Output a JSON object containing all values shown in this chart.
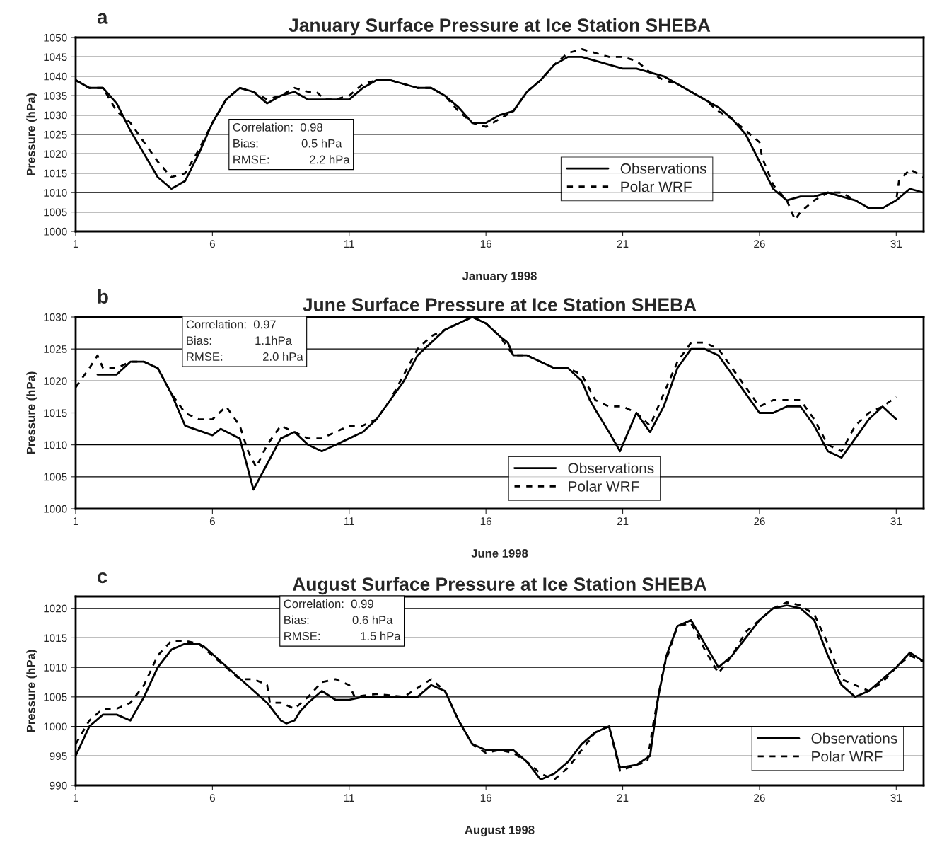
{
  "chart_data": [
    {
      "type": "line",
      "title": "January Surface Pressure at Ice Station SHEBA",
      "xlabel": "January 1998",
      "ylabel": "Pressure (hPa)",
      "annotations": [
        "a",
        "Correlation:  0.98",
        "Bias:             0.5 hPa",
        "RMSE:            2.2 hPa"
      ],
      "xlim": [
        1,
        32
      ],
      "xticks": [
        1,
        6,
        11,
        16,
        21,
        26,
        31
      ],
      "ylim": [
        1000,
        1050
      ],
      "yticks": [
        1000,
        1005,
        1010,
        1015,
        1020,
        1025,
        1030,
        1035,
        1040,
        1045,
        1050
      ],
      "grid": "y",
      "legend": "bottom right",
      "marker": "none",
      "series": [
        {
          "name": "Observations",
          "color": "#000000",
          "line_style": "solid",
          "x": [
            1,
            1.5,
            2,
            2.5,
            3,
            3.5,
            4,
            4.5,
            5,
            5.5,
            6,
            6.5,
            7,
            7.5,
            8,
            8.5,
            9,
            9.5,
            10,
            10.5,
            11,
            11.5,
            12,
            12.5,
            13,
            13.5,
            14,
            14.5,
            15,
            15.5,
            16,
            16.5,
            17,
            17.5,
            18,
            18.5,
            19,
            19.5,
            20,
            20.5,
            21,
            21.5,
            22,
            22.5,
            23,
            23.5,
            24,
            24.5,
            25,
            25.5,
            26,
            26.5,
            27,
            27.5,
            28,
            28.5,
            29,
            29.5,
            30,
            30.5,
            31,
            31.5,
            32
          ],
          "values": [
            1039,
            1037,
            1037,
            1033,
            1026,
            1020,
            1014,
            1011,
            1013,
            1020,
            1028,
            1034,
            1037,
            1036,
            1033,
            1035,
            1036,
            1034,
            1034,
            1034,
            1034,
            1037,
            1039,
            1039,
            1038,
            1037,
            1037,
            1035,
            1032,
            1028,
            1028,
            1030,
            1031,
            1036,
            1039,
            1043,
            1045,
            1045,
            1044,
            1043,
            1042,
            1042,
            1041,
            1040,
            1038,
            1036,
            1034,
            1032,
            1029,
            1025,
            1018,
            1011,
            1008,
            1009,
            1009,
            1010,
            1009,
            1008,
            1006,
            1006,
            1008,
            1011,
            1010
          ]
        },
        {
          "name": "Polar WRF",
          "color": "#000000",
          "line_style": "dashed",
          "x": [
            1,
            1.5,
            2,
            2.5,
            3,
            3.5,
            4,
            4.5,
            5,
            5.5,
            6,
            6.5,
            7,
            7.5,
            8,
            8.5,
            9,
            9.5,
            9.8,
            9.9,
            10.1,
            10.5,
            11,
            11.5,
            12,
            12.5,
            13,
            13.5,
            14,
            14.5,
            15,
            15.5,
            16,
            16.5,
            17,
            17.1,
            17.3,
            17.5,
            18,
            18.5,
            19,
            19.5,
            20,
            20.5,
            21,
            21.5,
            22,
            22.5,
            23,
            23.5,
            24,
            24.5,
            25,
            25.5,
            26,
            26.05,
            26.1,
            26.5,
            27,
            27.3,
            27.5,
            28,
            28.5,
            29,
            29.5,
            30,
            30.5,
            31,
            31.05,
            31.1,
            31.5,
            32
          ],
          "values": [
            1039,
            1037,
            1037,
            1031,
            1028,
            1023,
            1018,
            1014,
            1015,
            1021,
            1028,
            1034,
            1037,
            1036,
            1034,
            1035,
            1037,
            1036,
            1036,
            null,
            1034,
            1034,
            1035,
            1038,
            1039,
            1039,
            1038,
            1037,
            1037,
            1035,
            1031,
            1028,
            1027,
            1029,
            1031,
            null,
            1034,
            1036,
            1039,
            1043,
            1046,
            1047,
            1046,
            1045,
            1045,
            1044,
            1041,
            1039,
            1038,
            1036,
            1034,
            1031,
            1029,
            1026,
            1023,
            null,
            1019,
            1012,
            1008,
            1003,
            1005,
            1008,
            1010,
            1010,
            1008,
            1006,
            1006,
            1008,
            null,
            1013,
            1016,
            1014
          ]
        }
      ]
    },
    {
      "type": "line",
      "title": "June Surface Pressure at Ice Station SHEBA",
      "xlabel": "June 1998",
      "ylabel": "Pressure (hPa)",
      "annotations": [
        "b",
        "Correlation:  0.97",
        "Bias:             1.1hPa",
        "RMSE:            2.0 hPa"
      ],
      "xlim": [
        1,
        32
      ],
      "xticks": [
        1,
        6,
        11,
        16,
        21,
        26,
        31
      ],
      "ylim": [
        1000,
        1030
      ],
      "yticks": [
        1000,
        1005,
        1010,
        1015,
        1020,
        1025,
        1030
      ],
      "grid": "y",
      "legend": "bottom",
      "marker": "none",
      "series": [
        {
          "name": "Observations",
          "color": "#000000",
          "line_style": "solid",
          "x": [
            1.8,
            2,
            2.5,
            3,
            3.5,
            4,
            4.5,
            5,
            5.5,
            6,
            6.3,
            6.6,
            7,
            7.5,
            8,
            8.5,
            9,
            9.5,
            10,
            10.5,
            11,
            11.5,
            12,
            12.5,
            13,
            13.5,
            14,
            14.5,
            15,
            15.5,
            16,
            16.5,
            16.8,
            16.9,
            17,
            17.5,
            18,
            18.5,
            19,
            19.5,
            19.8,
            19.9,
            20,
            20.5,
            20.9,
            21.5,
            22,
            22.5,
            23,
            23.5,
            24,
            24.5,
            25,
            25.5,
            26,
            26.5,
            27,
            27.5,
            28,
            28.5,
            29,
            29.5,
            30,
            30.5,
            31
          ],
          "values": [
            1021,
            1021,
            1021,
            1023,
            1023,
            1022,
            1018,
            1013,
            null,
            1011.5,
            1012.5,
            null,
            1011,
            1003,
            1007,
            1011,
            1012,
            1010,
            1009,
            1010,
            1011,
            1012,
            1014,
            1017,
            1020,
            1024,
            1026,
            1028,
            1029,
            1030,
            1029,
            1027,
            1026,
            null,
            1024,
            1024,
            1023,
            1022,
            1022,
            1020,
            1017,
            null,
            1015.5,
            1012,
            1009,
            1015,
            1012,
            1016,
            1022,
            1025,
            1025,
            1024,
            1021,
            1018,
            1015,
            1015,
            1016,
            1016,
            1013,
            1009,
            1008,
            1011,
            1014,
            1016,
            1014
          ]
        },
        {
          "name": "Polar WRF",
          "color": "#000000",
          "line_style": "dashed",
          "x": [
            1,
            1.5,
            1.8,
            1.9,
            2,
            2.5,
            3,
            3.5,
            4,
            4.5,
            5,
            5.5,
            6,
            6.5,
            7,
            7.1,
            7.3,
            7.6,
            8,
            8.5,
            9,
            9.5,
            10,
            10.5,
            11,
            11.5,
            12,
            12.5,
            13,
            13.5,
            14,
            14.5,
            15,
            15.5,
            16,
            16.5,
            17,
            17.5,
            18,
            18.5,
            19,
            19.5,
            20,
            20.5,
            21,
            21.5,
            22,
            22.5,
            23,
            23.5,
            24,
            24.5,
            25,
            25.5,
            26,
            26.5,
            27,
            27.5,
            28,
            28.5,
            29,
            29.5,
            30,
            30.5,
            31
          ],
          "values": [
            1019,
            1022,
            1024,
            null,
            1022,
            1022,
            1023,
            1023,
            1022,
            1018,
            1015,
            1014,
            1014,
            1016,
            1013,
            null,
            1009,
            1006.5,
            1010,
            1013,
            1012,
            1011,
            1011,
            1012,
            1013,
            1013,
            1014,
            1017,
            1021,
            1025,
            1027,
            1028,
            1029,
            1030,
            1029,
            1027,
            1024,
            1024,
            1023,
            1022,
            1022,
            1021,
            1017,
            1016,
            1016,
            1015,
            1013,
            1018,
            1023,
            1026,
            1026,
            1025,
            1022,
            1019,
            1016,
            1017,
            1017,
            1017,
            1014,
            1010,
            1009,
            1013,
            1015,
            1016,
            1017.5
          ]
        }
      ]
    },
    {
      "type": "line",
      "title": "August Surface Pressure at Ice Station SHEBA",
      "xlabel": "August 1998",
      "ylabel": "Pressure (hPa)",
      "annotations": [
        "c",
        "Correlation:  0.99",
        "Bias:             0.6 hPa",
        "RMSE:            1.5 hPa"
      ],
      "xlim": [
        1,
        32
      ],
      "xticks": [
        1,
        6,
        11,
        16,
        21,
        26,
        31
      ],
      "ylim": [
        990,
        1022
      ],
      "yticks": [
        990,
        995,
        1000,
        1005,
        1010,
        1015,
        1020
      ],
      "grid": "y",
      "legend": "bottom right",
      "marker": "none",
      "series": [
        {
          "name": "Observations",
          "color": "#000000",
          "line_style": "solid",
          "x": [
            1,
            1.5,
            2,
            2.5,
            3,
            3.5,
            4,
            4.5,
            5,
            5.5,
            5.7,
            5.8,
            8,
            8.5,
            8.7,
            9,
            9.1,
            9.2,
            9.5,
            10,
            10.5,
            11,
            11.5,
            12,
            13,
            13.5,
            14,
            14.5,
            15,
            15.5,
            16,
            16.5,
            17,
            17.5,
            18,
            18.5,
            19,
            19.5,
            20,
            20.5,
            20.9,
            21.5,
            22,
            22.3,
            22.6,
            23,
            23.5,
            24,
            24.5,
            25,
            25.5,
            26,
            26.5,
            27,
            27.5,
            28,
            28.5,
            29,
            29.5,
            30,
            30.5,
            31,
            31.5,
            32
          ],
          "values": [
            995,
            1000,
            1002,
            1002,
            1001,
            1005,
            1010,
            1013,
            1014,
            1014,
            1013.5,
            null,
            1004,
            1001,
            1000.5,
            1001,
            null,
            1002.5,
            1004,
            1006,
            1004.5,
            1004.5,
            1005,
            1005,
            1005,
            1005,
            1007,
            1006,
            1001,
            997,
            996,
            996,
            996,
            994,
            991,
            992,
            994,
            997,
            999,
            1000,
            993,
            993.5,
            995,
            1005,
            1012,
            1017,
            1018,
            1014,
            1010,
            1012,
            1015,
            1018,
            1020,
            1020.5,
            1020,
            1018,
            1012,
            1007,
            1005,
            1006,
            1008,
            1010,
            1012.5,
            1011
          ]
        },
        {
          "name": "Polar WRF",
          "color": "#000000",
          "line_style": "dashed",
          "x": [
            1,
            1.5,
            2,
            2.5,
            3,
            3.5,
            4,
            4.5,
            5,
            5.5,
            6,
            6.5,
            7,
            7.3,
            7.4,
            7.5,
            8,
            8.05,
            8.1,
            8.5,
            9,
            9.5,
            10,
            10.5,
            11,
            11.1,
            11.2,
            12,
            13,
            14,
            14.5,
            15,
            15.5,
            16,
            16.5,
            17,
            17.5,
            18,
            18.5,
            19,
            19.5,
            20,
            20.5,
            20.9,
            21.5,
            21.9,
            22,
            22.1,
            22.5,
            23,
            23.5,
            24,
            24.5,
            25,
            25.5,
            26,
            26.5,
            27,
            27.5,
            28,
            28.5,
            29,
            29.5,
            30,
            30.5,
            31,
            31.5,
            32
          ],
          "values": [
            997,
            1001,
            1003,
            1003,
            1004,
            1007,
            1012,
            1014.5,
            1014.5,
            1014,
            1012,
            1010,
            1008,
            1008,
            null,
            1008,
            1007,
            null,
            1004,
            1004,
            1003,
            1005,
            1007.5,
            1008,
            1007,
            null,
            1005,
            1005.5,
            1005,
            1008,
            1006,
            1001,
            997,
            995.5,
            996,
            995.5,
            994,
            992,
            991,
            993,
            996,
            999,
            1000,
            992.5,
            993.5,
            994,
            null,
            1000,
            1010,
            1017,
            1017.5,
            1013,
            1009,
            1012,
            1016,
            1018,
            1020,
            1021,
            1020.5,
            1019,
            1014,
            1008,
            1007,
            1006,
            1007.5,
            1010,
            1012,
            1011
          ]
        }
      ]
    }
  ]
}
